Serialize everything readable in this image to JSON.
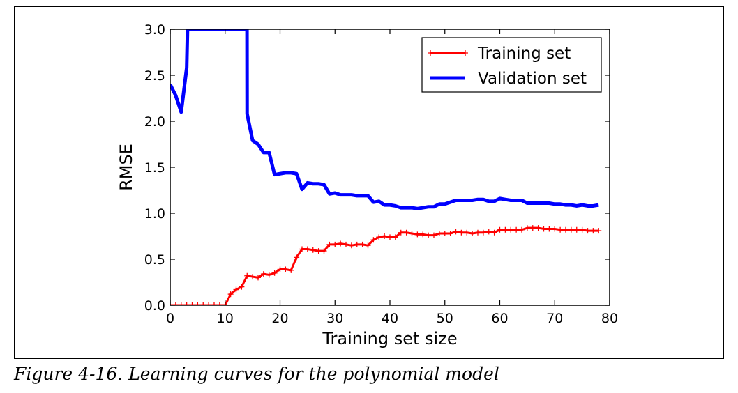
{
  "caption": "Figure 4-16. Learning curves for the polynomial model",
  "chart_data": {
    "type": "line",
    "xlabel": "Training set size",
    "ylabel": "RMSE",
    "xlim": [
      0,
      80
    ],
    "ylim": [
      0,
      3.0
    ],
    "xticks": [
      0,
      10,
      20,
      30,
      40,
      50,
      60,
      70,
      80
    ],
    "yticks": [
      0.0,
      0.5,
      1.0,
      1.5,
      2.0,
      2.5,
      3.0
    ],
    "xtick_labels": [
      "0",
      "10",
      "20",
      "30",
      "40",
      "50",
      "60",
      "70",
      "80"
    ],
    "ytick_labels": [
      "0.0",
      "0.5",
      "1.0",
      "1.5",
      "2.0",
      "2.5",
      "3.0"
    ],
    "grid": false,
    "legend_position": "top-right",
    "series": [
      {
        "name": "Training set",
        "color": "#ff0000",
        "marker": "+",
        "x": [
          0,
          1,
          2,
          3,
          4,
          5,
          6,
          7,
          8,
          9,
          10,
          11,
          12,
          13,
          14,
          15,
          16,
          17,
          18,
          19,
          20,
          21,
          22,
          23,
          24,
          25,
          26,
          27,
          28,
          29,
          30,
          31,
          32,
          33,
          34,
          35,
          36,
          37,
          38,
          39,
          40,
          41,
          42,
          43,
          44,
          45,
          46,
          47,
          48,
          49,
          50,
          51,
          52,
          53,
          54,
          55,
          56,
          57,
          58,
          59,
          60,
          61,
          62,
          63,
          64,
          65,
          66,
          67,
          68,
          69,
          70,
          71,
          72,
          73,
          74,
          75,
          76,
          77,
          78
        ],
        "values": [
          0,
          0,
          0,
          0,
          0,
          0,
          0,
          0,
          0,
          0,
          0,
          0.12,
          0.17,
          0.2,
          0.32,
          0.31,
          0.3,
          0.34,
          0.33,
          0.35,
          0.39,
          0.39,
          0.38,
          0.52,
          0.61,
          0.61,
          0.6,
          0.59,
          0.59,
          0.66,
          0.66,
          0.67,
          0.66,
          0.65,
          0.66,
          0.66,
          0.65,
          0.71,
          0.74,
          0.75,
          0.74,
          0.74,
          0.79,
          0.79,
          0.78,
          0.77,
          0.77,
          0.76,
          0.76,
          0.78,
          0.78,
          0.78,
          0.8,
          0.79,
          0.79,
          0.78,
          0.79,
          0.79,
          0.8,
          0.79,
          0.82,
          0.82,
          0.82,
          0.82,
          0.82,
          0.84,
          0.84,
          0.84,
          0.83,
          0.83,
          0.83,
          0.82,
          0.82,
          0.82,
          0.82,
          0.82,
          0.81,
          0.81,
          0.81
        ]
      },
      {
        "name": "Validation set",
        "color": "#0000ff",
        "marker": "",
        "x": [
          0,
          1,
          2,
          3,
          3.15,
          13.98,
          14,
          15,
          16,
          17,
          18,
          19,
          20,
          21,
          22,
          23,
          24,
          25,
          26,
          27,
          28,
          29,
          30,
          31,
          32,
          33,
          34,
          35,
          36,
          37,
          38,
          39,
          40,
          41,
          42,
          43,
          44,
          45,
          46,
          47,
          48,
          49,
          50,
          51,
          52,
          53,
          54,
          55,
          56,
          57,
          58,
          59,
          60,
          61,
          62,
          63,
          64,
          65,
          66,
          67,
          68,
          69,
          70,
          71,
          72,
          73,
          74,
          75,
          76,
          77,
          78
        ],
        "values": [
          2.4,
          2.28,
          2.1,
          2.58,
          3.0,
          3.0,
          2.08,
          1.79,
          1.75,
          1.66,
          1.66,
          1.42,
          1.43,
          1.44,
          1.44,
          1.43,
          1.26,
          1.33,
          1.32,
          1.32,
          1.31,
          1.21,
          1.22,
          1.2,
          1.2,
          1.2,
          1.19,
          1.19,
          1.19,
          1.12,
          1.13,
          1.09,
          1.09,
          1.08,
          1.06,
          1.06,
          1.06,
          1.05,
          1.06,
          1.07,
          1.07,
          1.1,
          1.1,
          1.12,
          1.14,
          1.14,
          1.14,
          1.14,
          1.15,
          1.15,
          1.13,
          1.13,
          1.16,
          1.15,
          1.14,
          1.14,
          1.14,
          1.11,
          1.11,
          1.11,
          1.11,
          1.11,
          1.1,
          1.1,
          1.09,
          1.09,
          1.08,
          1.09,
          1.08,
          1.08,
          1.09
        ]
      }
    ]
  }
}
